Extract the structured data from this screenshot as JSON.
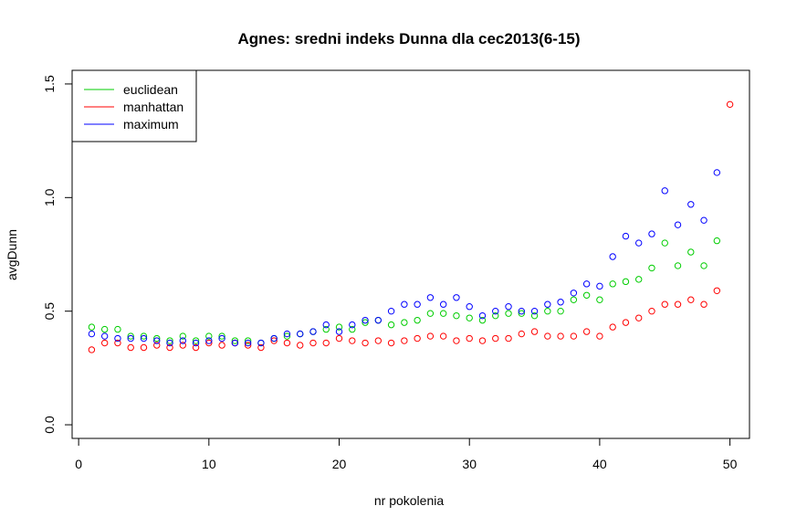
{
  "chart_data": {
    "type": "scatter",
    "title": "Agnes: sredni indeks Dunna dla cec2013(6-15)",
    "xlabel": "nr pokolenia",
    "ylabel": "avgDunn",
    "xlim": [
      -0.5,
      51.5
    ],
    "ylim": [
      -0.06,
      1.56
    ],
    "x_ticks": [
      0,
      10,
      20,
      30,
      40,
      50
    ],
    "y_ticks": [
      0.0,
      0.5,
      1.0,
      1.5
    ],
    "x_tick_labels": [
      "0",
      "10",
      "20",
      "30",
      "40",
      "50"
    ],
    "y_tick_labels": [
      "0.0",
      "0.5",
      "1.0",
      "1.5"
    ],
    "legend_position": "top-left",
    "series": [
      {
        "name": "euclidean",
        "color": "#00cd00",
        "x": [
          1,
          2,
          3,
          4,
          5,
          6,
          7,
          8,
          9,
          10,
          11,
          12,
          13,
          14,
          15,
          16,
          17,
          18,
          19,
          20,
          21,
          22,
          23,
          24,
          25,
          26,
          27,
          28,
          29,
          30,
          31,
          32,
          33,
          34,
          35,
          36,
          37,
          38,
          39,
          40,
          41,
          42,
          43,
          44,
          45,
          46,
          47,
          48,
          49
        ],
        "y": [
          0.43,
          0.42,
          0.42,
          0.39,
          0.39,
          0.38,
          0.37,
          0.39,
          0.37,
          0.39,
          0.39,
          0.37,
          0.37,
          0.36,
          0.38,
          0.39,
          0.4,
          0.41,
          0.42,
          0.43,
          0.42,
          0.45,
          0.46,
          0.44,
          0.45,
          0.46,
          0.49,
          0.49,
          0.48,
          0.47,
          0.46,
          0.48,
          0.49,
          0.49,
          0.48,
          0.5,
          0.5,
          0.55,
          0.57,
          0.55,
          0.62,
          0.63,
          0.64,
          0.69,
          0.8,
          0.7,
          0.76,
          0.7,
          0.81
        ]
      },
      {
        "name": "manhattan",
        "color": "#ff0000",
        "x": [
          1,
          2,
          3,
          4,
          5,
          6,
          7,
          8,
          9,
          10,
          11,
          12,
          13,
          14,
          15,
          16,
          17,
          18,
          19,
          20,
          21,
          22,
          23,
          24,
          25,
          26,
          27,
          28,
          29,
          30,
          31,
          32,
          33,
          34,
          35,
          36,
          37,
          38,
          39,
          40,
          41,
          42,
          43,
          44,
          45,
          46,
          47,
          48,
          49,
          50
        ],
        "y": [
          0.33,
          0.36,
          0.36,
          0.34,
          0.34,
          0.35,
          0.34,
          0.35,
          0.34,
          0.36,
          0.35,
          0.36,
          0.35,
          0.34,
          0.37,
          0.36,
          0.35,
          0.36,
          0.36,
          0.38,
          0.37,
          0.36,
          0.37,
          0.36,
          0.37,
          0.38,
          0.39,
          0.39,
          0.37,
          0.38,
          0.37,
          0.38,
          0.38,
          0.4,
          0.41,
          0.39,
          0.39,
          0.39,
          0.41,
          0.39,
          0.43,
          0.45,
          0.47,
          0.5,
          0.53,
          0.53,
          0.55,
          0.53,
          0.59,
          1.41
        ]
      },
      {
        "name": "maximum",
        "color": "#0000ff",
        "x": [
          1,
          2,
          3,
          4,
          5,
          6,
          7,
          8,
          9,
          10,
          11,
          12,
          13,
          14,
          15,
          16,
          17,
          18,
          19,
          20,
          21,
          22,
          23,
          24,
          25,
          26,
          27,
          28,
          29,
          30,
          31,
          32,
          33,
          34,
          35,
          36,
          37,
          38,
          39,
          40,
          41,
          42,
          43,
          44,
          45,
          46,
          47,
          48,
          49
        ],
        "y": [
          0.4,
          0.39,
          0.38,
          0.38,
          0.38,
          0.37,
          0.36,
          0.37,
          0.36,
          0.37,
          0.38,
          0.36,
          0.36,
          0.36,
          0.38,
          0.4,
          0.4,
          0.41,
          0.44,
          0.41,
          0.44,
          0.46,
          0.46,
          0.5,
          0.53,
          0.53,
          0.56,
          0.53,
          0.56,
          0.52,
          0.48,
          0.5,
          0.52,
          0.5,
          0.5,
          0.53,
          0.54,
          0.58,
          0.62,
          0.61,
          0.74,
          0.83,
          0.8,
          0.84,
          1.03,
          0.88,
          0.97,
          0.9,
          1.11
        ]
      }
    ]
  }
}
